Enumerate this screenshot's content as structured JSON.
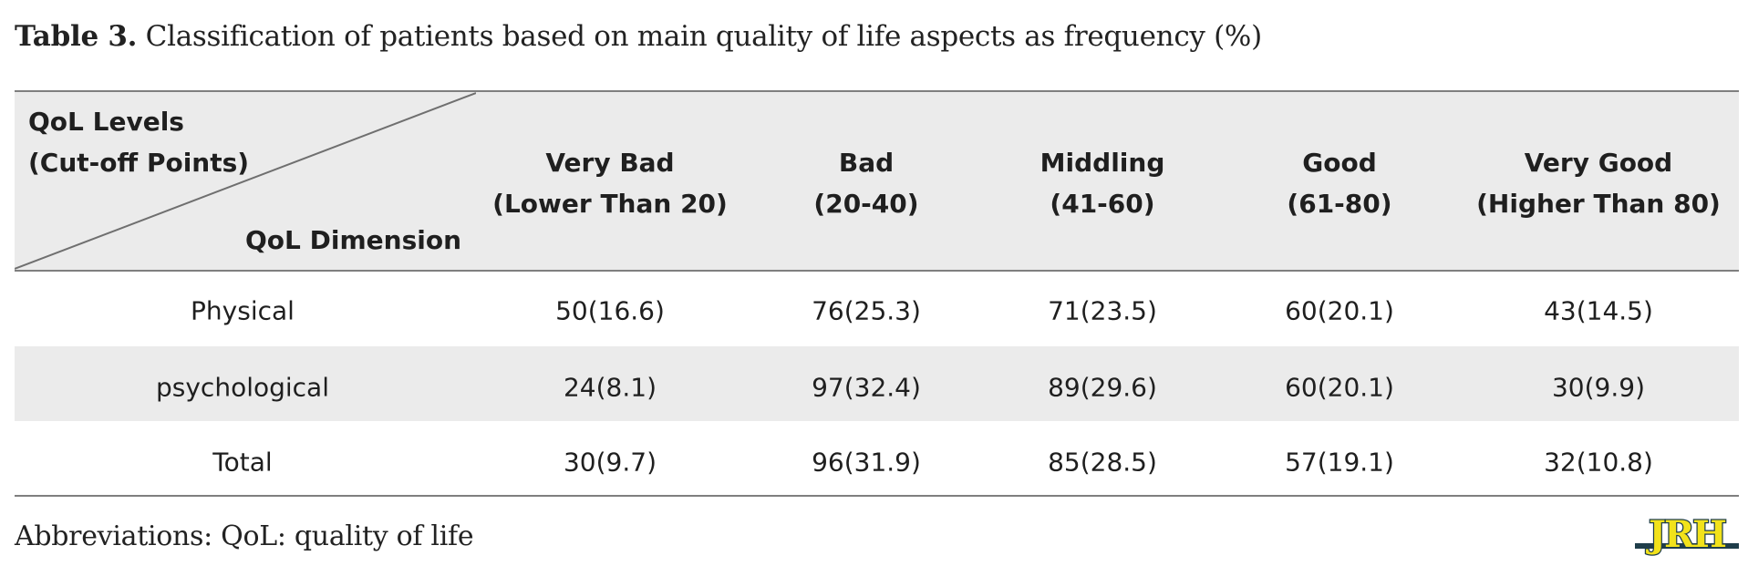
{
  "caption": {
    "label": "Table 3.",
    "text": " Classification of patients based on main quality of life aspects as frequency (%)"
  },
  "table": {
    "corner": {
      "top_line1": "QoL Levels",
      "top_line2": "(Cut-off Points)",
      "bottom": "QoL Dimension"
    },
    "columns": [
      {
        "line1": "Very Bad",
        "line2": "(Lower Than 20)"
      },
      {
        "line1": "Bad",
        "line2": "(20-40)"
      },
      {
        "line1": "Middling",
        "line2": "(41-60)"
      },
      {
        "line1": "Good",
        "line2": "(61-80)"
      },
      {
        "line1": "Very Good",
        "line2": "(Higher Than 80)"
      }
    ],
    "rows": [
      {
        "label": "Physical",
        "cells": [
          "50(16.6)",
          "76(25.3)",
          "71(23.5)",
          "60(20.1)",
          "43(14.5)"
        ]
      },
      {
        "label": "psychological",
        "cells": [
          "24(8.1)",
          "97(32.4)",
          "89(29.6)",
          "60(20.1)",
          "30(9.9)"
        ]
      },
      {
        "label": "Total",
        "cells": [
          "30(9.7)",
          "96(31.9)",
          "85(28.5)",
          "57(19.1)",
          "32(10.8)"
        ]
      }
    ]
  },
  "footnote": "Abbreviations: QoL: quality of life",
  "logo": {
    "text": "JRH",
    "colors": {
      "primary": "#1f3d4a",
      "accent": "#f2e21b"
    }
  }
}
